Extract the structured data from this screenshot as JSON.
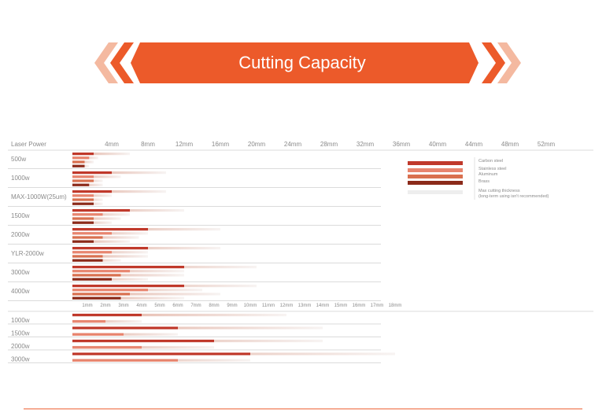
{
  "banner": {
    "title": "Cutting Capacity",
    "color": "#ec5a2a",
    "chevron_color": "#f4b9a0"
  },
  "chart_data": {
    "type": "bar",
    "header_label": "Laser Power",
    "top_axis_ticks": [
      "4mm",
      "8mm",
      "12mm",
      "16mm",
      "20mm",
      "24mm",
      "28mm",
      "32mm",
      "36mm",
      "40mm",
      "44mm",
      "48mm",
      "52mm"
    ],
    "top_axis_values": [
      4,
      8,
      12,
      16,
      20,
      24,
      28,
      32,
      36,
      40,
      44,
      48,
      52
    ],
    "bottom_axis_ticks": [
      "1mm",
      "2mm",
      "3mm",
      "4mm",
      "5mm",
      "6mm",
      "7mm",
      "8mm",
      "9mm",
      "10mm",
      "11mm",
      "12mm",
      "13mm",
      "14mm",
      "15mm",
      "16mm",
      "17mm",
      "18mm"
    ],
    "bottom_axis_values": [
      1,
      2,
      3,
      4,
      5,
      6,
      7,
      8,
      9,
      10,
      11,
      12,
      13,
      14,
      15,
      16,
      17,
      18
    ],
    "legend": {
      "items": [
        {
          "name": "Carbon steel",
          "color": "#c0392b"
        },
        {
          "name": "Stainless steel",
          "color": "#e8856f"
        },
        {
          "name": "Aluminum",
          "color": "#e8856f"
        },
        {
          "name": "Brass",
          "color": "#8b2a1a"
        }
      ],
      "max_label": "Max cutting thickness",
      "max_note": "(long-term using isn't recommended)"
    },
    "groups": [
      {
        "label": "500w",
        "bars": [
          {
            "material": "carbon",
            "solid": 2,
            "max": 6
          },
          {
            "material": "stainless",
            "solid": 1.5,
            "max": 2.5
          },
          {
            "material": "aluminum",
            "solid": 1,
            "max": 2
          },
          {
            "material": "brass",
            "solid": 1,
            "max": 1.5
          }
        ]
      },
      {
        "label": "1000w",
        "bars": [
          {
            "material": "carbon",
            "solid": 4,
            "max": 10
          },
          {
            "material": "stainless",
            "solid": 2,
            "max": 5
          },
          {
            "material": "aluminum",
            "solid": 2,
            "max": 3
          },
          {
            "material": "brass",
            "solid": 1.5,
            "max": 3
          }
        ]
      },
      {
        "label": "MAX-1000W(25um)",
        "bars": [
          {
            "material": "carbon",
            "solid": 4,
            "max": 10
          },
          {
            "material": "stainless",
            "solid": 2,
            "max": 4
          },
          {
            "material": "aluminum",
            "solid": 2,
            "max": 3
          },
          {
            "material": "brass",
            "solid": 2,
            "max": 3
          }
        ]
      },
      {
        "label": "1500w",
        "bars": [
          {
            "material": "carbon",
            "solid": 6,
            "max": 12
          },
          {
            "material": "stainless",
            "solid": 3,
            "max": 6
          },
          {
            "material": "aluminum",
            "solid": 2,
            "max": 5
          },
          {
            "material": "brass",
            "solid": 2,
            "max": 4
          }
        ]
      },
      {
        "label": "2000w",
        "bars": [
          {
            "material": "carbon",
            "solid": 8,
            "max": 16
          },
          {
            "material": "stainless",
            "solid": 4,
            "max": 8
          },
          {
            "material": "aluminum",
            "solid": 3,
            "max": 7
          },
          {
            "material": "brass",
            "solid": 2,
            "max": 6
          }
        ]
      },
      {
        "label": "YLR-2000w",
        "bars": [
          {
            "material": "carbon",
            "solid": 8,
            "max": 16
          },
          {
            "material": "stainless",
            "solid": 4,
            "max": 8
          },
          {
            "material": "aluminum",
            "solid": 3,
            "max": 8
          },
          {
            "material": "brass",
            "solid": 3,
            "max": 5
          }
        ]
      },
      {
        "label": "3000w",
        "bars": [
          {
            "material": "carbon",
            "solid": 12,
            "max": 20
          },
          {
            "material": "stainless",
            "solid": 6,
            "max": 12
          },
          {
            "material": "aluminum",
            "solid": 5,
            "max": 12
          },
          {
            "material": "brass",
            "solid": 4,
            "max": 8
          }
        ]
      },
      {
        "label": "4000w",
        "bars": [
          {
            "material": "carbon",
            "solid": 12,
            "max": 20
          },
          {
            "material": "stainless",
            "solid": 8,
            "max": 14
          },
          {
            "material": "aluminum",
            "solid": 6,
            "max": 16
          },
          {
            "material": "brass",
            "solid": 5,
            "max": 12
          }
        ]
      }
    ],
    "groups_bottom": [
      {
        "label": "1000w",
        "bars": [
          {
            "material": "carbon",
            "solid": 4,
            "max": 12
          },
          {
            "material": "stainless",
            "solid": 2,
            "max": 4
          }
        ]
      },
      {
        "label": "1500w",
        "bars": [
          {
            "material": "carbon",
            "solid": 6,
            "max": 14
          },
          {
            "material": "stainless",
            "solid": 3,
            "max": 6
          }
        ]
      },
      {
        "label": "2000w",
        "bars": [
          {
            "material": "carbon",
            "solid": 8,
            "max": 14
          },
          {
            "material": "stainless",
            "solid": 4,
            "max": 8
          }
        ]
      },
      {
        "label": "3000w",
        "bars": [
          {
            "material": "carbon",
            "solid": 10,
            "max": 18
          },
          {
            "material": "stainless",
            "solid": 6,
            "max": 10
          }
        ]
      }
    ]
  }
}
